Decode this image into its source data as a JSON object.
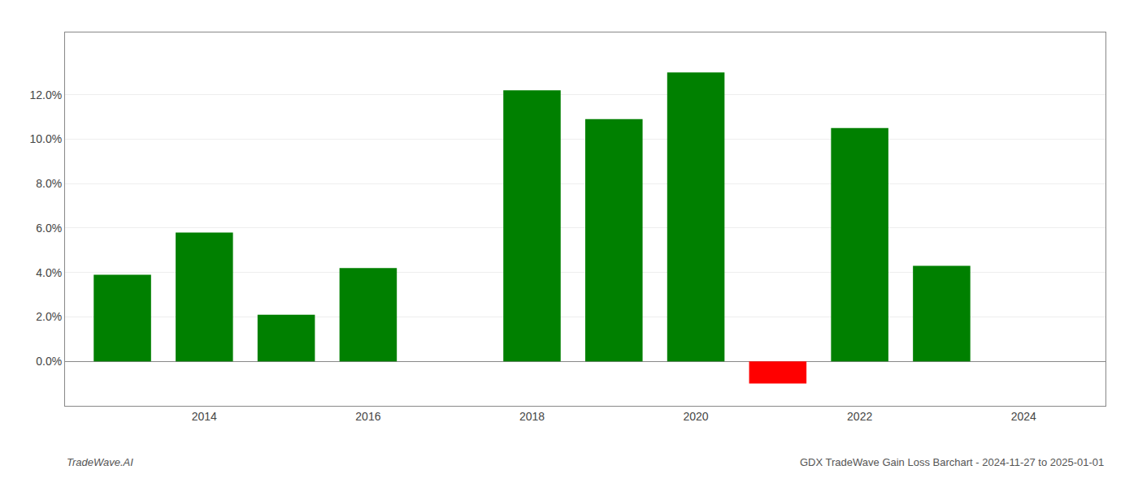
{
  "chart_data": {
    "type": "bar",
    "x": [
      2013,
      2014,
      2015,
      2016,
      2018,
      2019,
      2020,
      2021,
      2022,
      2023
    ],
    "values": [
      0.039,
      0.058,
      0.021,
      0.042,
      0.122,
      0.109,
      0.13,
      -0.01,
      0.105,
      0.043
    ],
    "colors": [
      "#008000",
      "#008000",
      "#008000",
      "#008000",
      "#008000",
      "#008000",
      "#008000",
      "#ff0000",
      "#008000",
      "#008000"
    ],
    "xlim": [
      2012.3,
      2025.0
    ],
    "xticks": [
      2014,
      2016,
      2018,
      2020,
      2022,
      2024
    ],
    "ylim": [
      -0.02,
      0.148
    ],
    "yticks": [
      {
        "value": 0.0,
        "label": "0.0%"
      },
      {
        "value": 0.02,
        "label": "2.0%"
      },
      {
        "value": 0.04,
        "label": "4.0%"
      },
      {
        "value": 0.06,
        "label": "6.0%"
      },
      {
        "value": 0.08,
        "label": "8.0%"
      },
      {
        "value": 0.1,
        "label": "10.0%"
      },
      {
        "value": 0.12,
        "label": "12.0%"
      }
    ],
    "grid": true,
    "annotations": [
      "TradeWave.AI",
      "GDX TradeWave Gain Loss Barchart - 2024-11-27 to 2025-01-01"
    ]
  }
}
